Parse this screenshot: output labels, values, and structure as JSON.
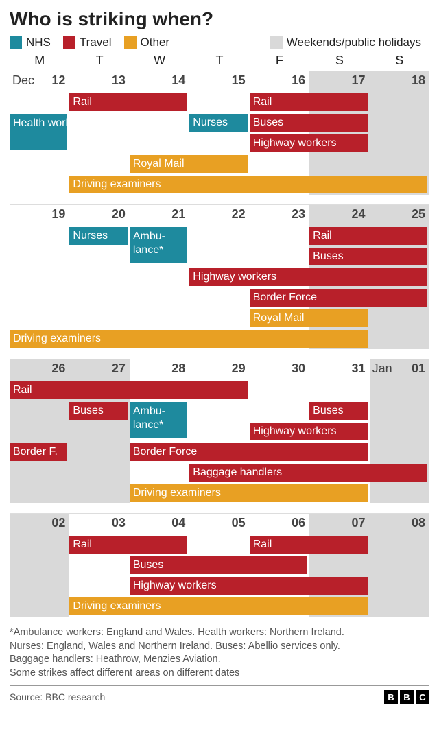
{
  "title": "Who is striking when?",
  "colors": {
    "nhs": "#1e8a9e",
    "travel": "#b8202a",
    "other": "#e8a023",
    "weekend": "#d9d9d9"
  },
  "legend": [
    {
      "label": "NHS",
      "color": "#1e8a9e"
    },
    {
      "label": "Travel",
      "color": "#b8202a"
    },
    {
      "label": "Other",
      "color": "#e8a023"
    },
    {
      "label": "Weekends/public holidays",
      "color": "#d9d9d9"
    }
  ],
  "dow": [
    "M",
    "T",
    "W",
    "T",
    "F",
    "S",
    "S"
  ],
  "weeks": [
    {
      "days": [
        {
          "n": "12",
          "month": "Dec"
        },
        {
          "n": "13"
        },
        {
          "n": "14"
        },
        {
          "n": "15"
        },
        {
          "n": "16"
        },
        {
          "n": "17",
          "weekend": true
        },
        {
          "n": "18",
          "weekend": true
        }
      ],
      "rows": [
        [
          {
            "label": "Rail",
            "cat": "travel",
            "start": 1,
            "span": 2
          },
          {
            "label": "Rail",
            "cat": "travel",
            "start": 4,
            "span": 2
          }
        ],
        [
          {
            "label": "Health workers",
            "cat": "nhs",
            "start": 0,
            "span": 1,
            "tall": true
          },
          {
            "label": "Nurses",
            "cat": "nhs",
            "start": 3,
            "span": 1
          },
          {
            "label": "Buses",
            "cat": "travel",
            "start": 4,
            "span": 2
          }
        ],
        [
          {
            "label": "Highway workers",
            "cat": "travel",
            "start": 4,
            "span": 2
          }
        ],
        [
          {
            "label": "Royal Mail",
            "cat": "other",
            "start": 2,
            "span": 2
          }
        ],
        [
          {
            "label": "Driving examiners",
            "cat": "other",
            "start": 1,
            "span": 6
          }
        ]
      ]
    },
    {
      "days": [
        {
          "n": "19"
        },
        {
          "n": "20"
        },
        {
          "n": "21"
        },
        {
          "n": "22"
        },
        {
          "n": "23"
        },
        {
          "n": "24",
          "weekend": true
        },
        {
          "n": "25",
          "weekend": true
        }
      ],
      "rows": [
        [
          {
            "label": "Nurses",
            "cat": "nhs",
            "start": 1,
            "span": 1
          },
          {
            "label": "Ambu-\nlance*",
            "cat": "nhs",
            "start": 2,
            "span": 1,
            "tall": true
          },
          {
            "label": "Rail",
            "cat": "travel",
            "start": 5,
            "span": 2
          }
        ],
        [
          {
            "label": "Buses",
            "cat": "travel",
            "start": 5,
            "span": 2
          }
        ],
        [
          {
            "label": "Highway workers",
            "cat": "travel",
            "start": 3,
            "span": 4
          }
        ],
        [
          {
            "label": "Border Force",
            "cat": "travel",
            "start": 4,
            "span": 3
          }
        ],
        [
          {
            "label": "Royal Mail",
            "cat": "other",
            "start": 4,
            "span": 2
          }
        ],
        [
          {
            "label": "Driving examiners",
            "cat": "other",
            "start": 0,
            "span": 6
          }
        ]
      ]
    },
    {
      "days": [
        {
          "n": "26",
          "weekend": true
        },
        {
          "n": "27",
          "weekend": true
        },
        {
          "n": "28"
        },
        {
          "n": "29"
        },
        {
          "n": "30"
        },
        {
          "n": "31"
        },
        {
          "n": "01",
          "month": "Jan",
          "weekend": true
        }
      ],
      "rows": [
        [
          {
            "label": "Rail",
            "cat": "travel",
            "start": 0,
            "span": 4
          }
        ],
        [
          {
            "label": "Buses",
            "cat": "travel",
            "start": 1,
            "span": 1
          },
          {
            "label": "Ambu-\nlance*",
            "cat": "nhs",
            "start": 2,
            "span": 1,
            "tall": true
          },
          {
            "label": "Buses",
            "cat": "travel",
            "start": 5,
            "span": 1
          }
        ],
        [
          {
            "label": "Highway workers",
            "cat": "travel",
            "start": 4,
            "span": 2
          }
        ],
        [
          {
            "label": "Border F.",
            "cat": "travel",
            "start": 0,
            "span": 1
          },
          {
            "label": "Border Force",
            "cat": "travel",
            "start": 2,
            "span": 4
          }
        ],
        [
          {
            "label": "Baggage handlers",
            "cat": "travel",
            "start": 3,
            "span": 4
          }
        ],
        [
          {
            "label": "Driving examiners",
            "cat": "other",
            "start": 2,
            "span": 4
          }
        ]
      ]
    },
    {
      "days": [
        {
          "n": "02",
          "weekend": true
        },
        {
          "n": "03"
        },
        {
          "n": "04"
        },
        {
          "n": "05"
        },
        {
          "n": "06"
        },
        {
          "n": "07",
          "weekend": true
        },
        {
          "n": "08",
          "weekend": true
        }
      ],
      "rows": [
        [
          {
            "label": "Rail",
            "cat": "travel",
            "start": 1,
            "span": 2
          },
          {
            "label": "Rail",
            "cat": "travel",
            "start": 4,
            "span": 2
          }
        ],
        [
          {
            "label": "Buses",
            "cat": "travel",
            "start": 2,
            "span": 3
          }
        ],
        [
          {
            "label": "Highway workers",
            "cat": "travel",
            "start": 2,
            "span": 4
          }
        ],
        [
          {
            "label": "Driving examiners",
            "cat": "other",
            "start": 1,
            "span": 5
          }
        ]
      ]
    }
  ],
  "notes": [
    "*Ambulance workers: England and Wales. Health workers: Northern Ireland.",
    "Nurses: England, Wales and Northern Ireland. Buses: Abellio services only.",
    "Baggage handlers: Heathrow, Menzies Aviation.",
    "Some strikes affect different areas on different dates"
  ],
  "source": "Source: BBC research",
  "logo": [
    "B",
    "B",
    "C"
  ]
}
